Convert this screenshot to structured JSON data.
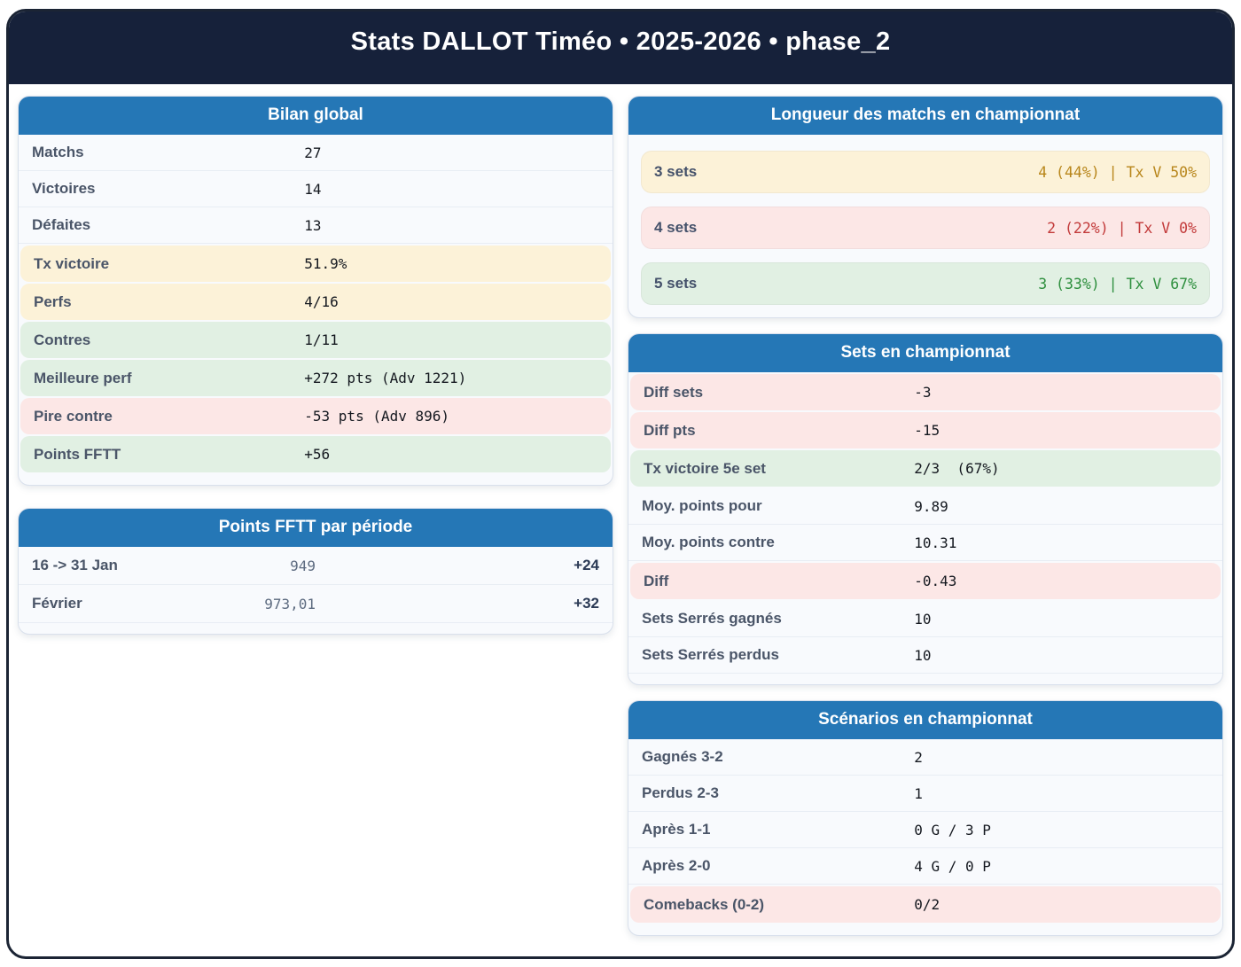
{
  "header": {
    "title": "Stats DALLOT Timéo • 2025-2026 • phase_2"
  },
  "colors": {
    "frame_border": "#1b2434",
    "header_bg": "#16213a",
    "card_header_bg": "#2577b6",
    "tone_yellow_bg": "#fcf2d8",
    "tone_green_bg": "#e1f0e3",
    "tone_red_bg": "#fce7e6",
    "yellow_text": "#b8861b",
    "red_text": "#c23a3a",
    "green_text": "#2e8f3e"
  },
  "cards": {
    "bilan": {
      "title": "Bilan global",
      "rows": [
        {
          "label": "Matchs",
          "value": "27",
          "tone": "plain"
        },
        {
          "label": "Victoires",
          "value": "14",
          "tone": "plain"
        },
        {
          "label": "Défaites",
          "value": "13",
          "tone": "plain"
        },
        {
          "label": "Tx victoire",
          "value": "51.9%",
          "tone": "yellow"
        },
        {
          "label": "Perfs",
          "value": "4/16",
          "tone": "yellow"
        },
        {
          "label": "Contres",
          "value": "1/11",
          "tone": "green"
        },
        {
          "label": "Meilleure perf",
          "value": "+272 pts (Adv 1221)",
          "tone": "green"
        },
        {
          "label": "Pire contre",
          "value": "-53 pts (Adv 896)",
          "tone": "red"
        },
        {
          "label": "Points FFTT",
          "value": "+56",
          "tone": "green"
        }
      ]
    },
    "periodes": {
      "title": "Points FFTT par période",
      "rows": [
        {
          "label": "16 -> 31 Jan",
          "value": "949",
          "delta": "+24"
        },
        {
          "label": "Février",
          "value": "973,01",
          "delta": "+32"
        }
      ]
    },
    "longueur": {
      "title": "Longueur des matchs en championnat",
      "rows": [
        {
          "label": "3 sets",
          "value": "4 (44%) | Tx V 50%",
          "tone": "yellow"
        },
        {
          "label": "4 sets",
          "value": "2 (22%) | Tx V 0%",
          "tone": "red"
        },
        {
          "label": "5 sets",
          "value": "3 (33%) | Tx V 67%",
          "tone": "green"
        }
      ]
    },
    "sets": {
      "title": "Sets en championnat",
      "rows": [
        {
          "label": "Diff sets",
          "value": "-3",
          "tone": "red"
        },
        {
          "label": "Diff pts",
          "value": "-15",
          "tone": "red"
        },
        {
          "label": "Tx victoire 5e set",
          "value": "2/3  (67%)",
          "tone": "green"
        },
        {
          "label": "Moy. points pour",
          "value": "9.89",
          "tone": "plain"
        },
        {
          "label": "Moy. points contre",
          "value": "10.31",
          "tone": "plain"
        },
        {
          "label": "Diff",
          "value": "-0.43",
          "tone": "red"
        },
        {
          "label": "Sets Serrés gagnés",
          "value": "10",
          "tone": "plain"
        },
        {
          "label": "Sets Serrés perdus",
          "value": "10",
          "tone": "plain"
        }
      ]
    },
    "scenarios": {
      "title": "Scénarios en championnat",
      "rows": [
        {
          "label": "Gagnés 3-2",
          "value": "2",
          "tone": "plain"
        },
        {
          "label": "Perdus 2-3",
          "value": "1",
          "tone": "plain"
        },
        {
          "label": "Après 1-1",
          "value": "0 G / 3 P",
          "tone": "plain"
        },
        {
          "label": "Après 2-0",
          "value": "4 G / 0 P",
          "tone": "plain"
        },
        {
          "label": "Comebacks (0-2)",
          "value": "0/2",
          "tone": "red"
        }
      ]
    }
  }
}
